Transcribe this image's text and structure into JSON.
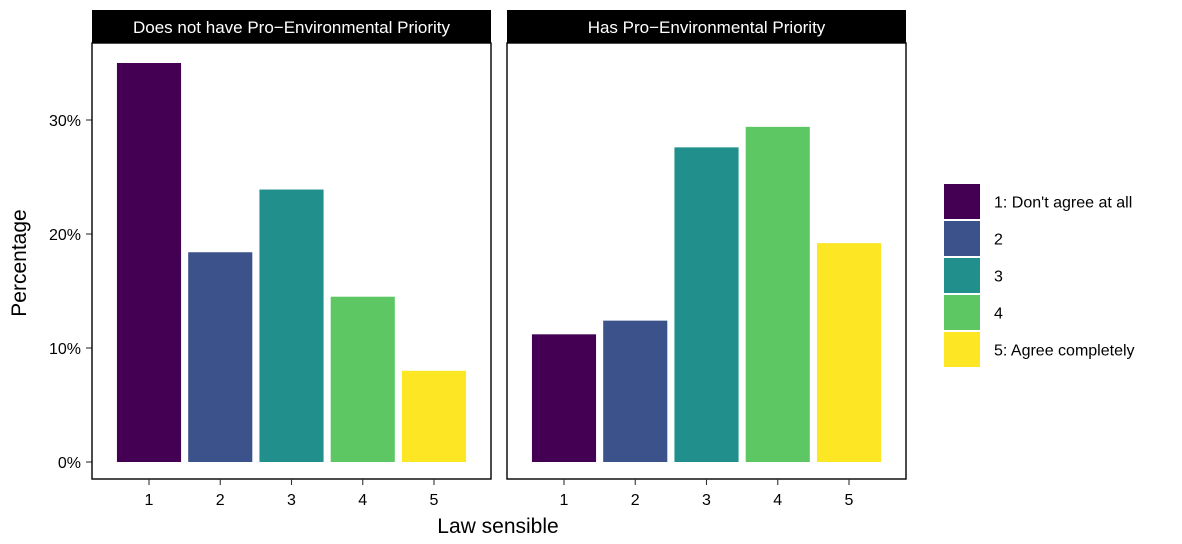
{
  "chart_data": {
    "type": "bar",
    "xlabel": "Law sensible",
    "ylabel": "Percentage",
    "ylim": [
      0,
      36
    ],
    "yticks": [
      0,
      10,
      20,
      30
    ],
    "ytick_labels": [
      "0%",
      "10%",
      "20%",
      "30%"
    ],
    "categories": [
      "1",
      "2",
      "3",
      "4",
      "5"
    ],
    "panels": [
      {
        "title": "Does not have Pro−Environmental Priority",
        "values": [
          35.0,
          18.4,
          23.9,
          14.5,
          8.0
        ]
      },
      {
        "title": "Has Pro−Environmental Priority",
        "values": [
          11.2,
          12.4,
          27.6,
          29.4,
          19.2
        ]
      }
    ],
    "legend": {
      "position": "right",
      "items": [
        {
          "label": "1: Don't agree at all",
          "color": "#440154"
        },
        {
          "label": "2",
          "color": "#3B528B"
        },
        {
          "label": "3",
          "color": "#21908C"
        },
        {
          "label": "4",
          "color": "#5DC863"
        },
        {
          "label": "5: Agree completely",
          "color": "#FDE725"
        }
      ]
    },
    "grid": false
  }
}
